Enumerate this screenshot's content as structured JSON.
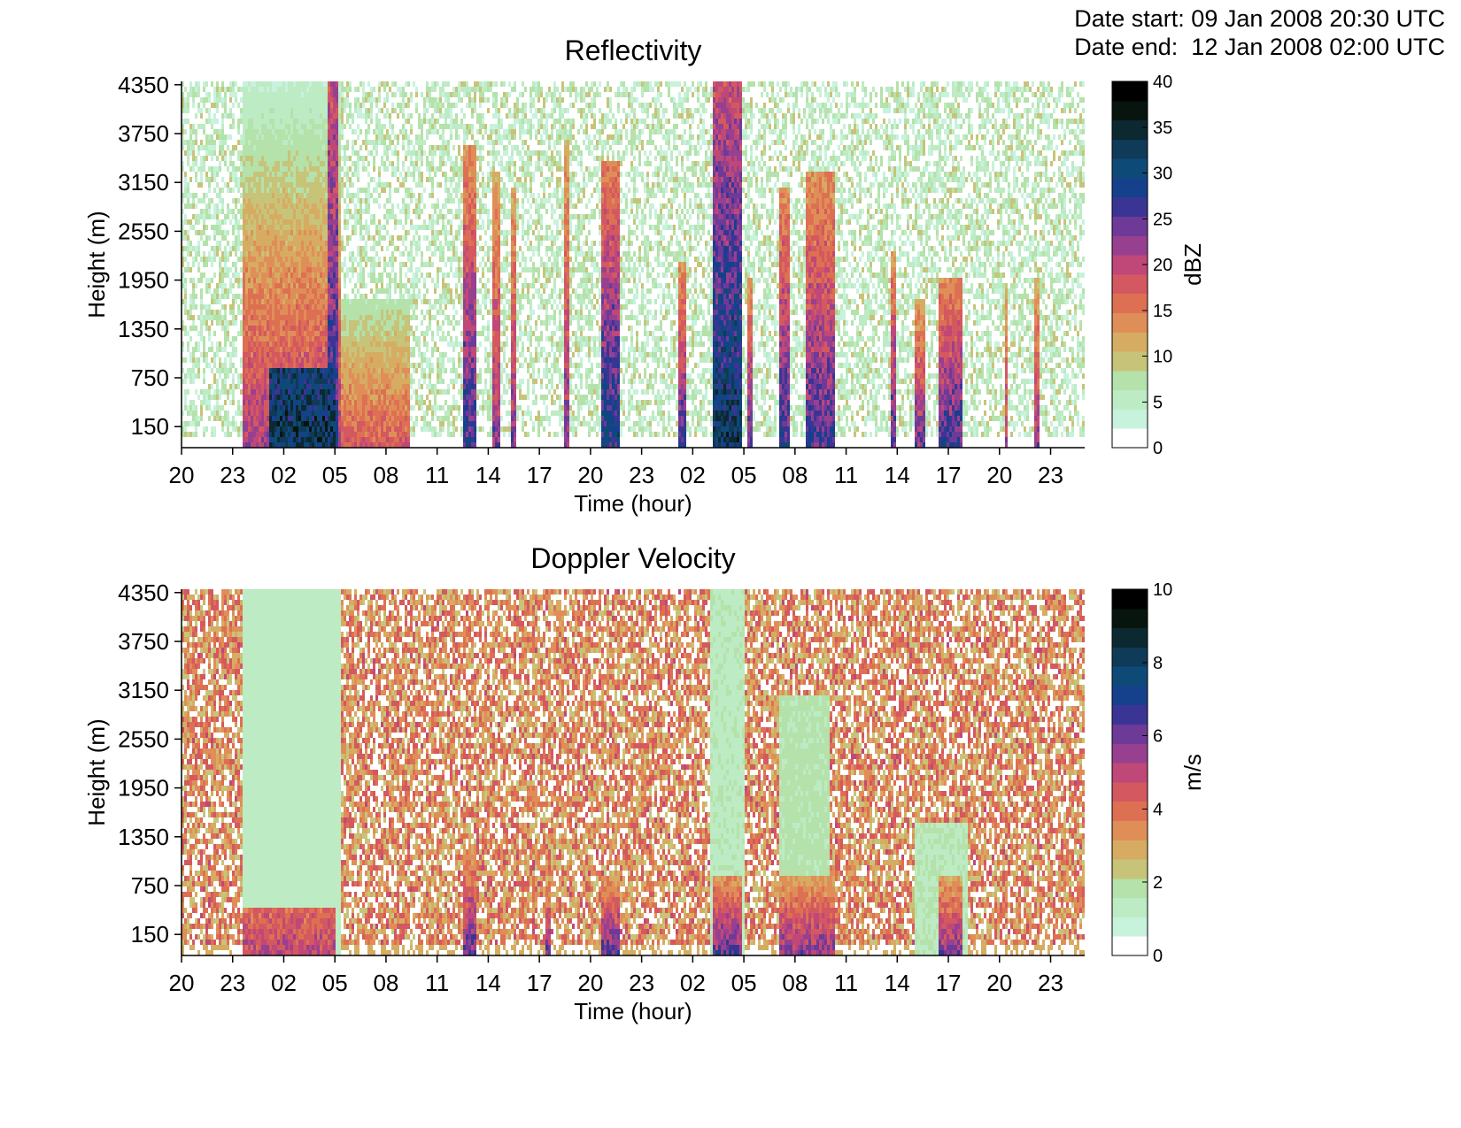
{
  "header": {
    "date_start_label": "Date start:",
    "date_start_value": "09 Jan 2008 20:30 UTC",
    "date_end_label": "Date end:",
    "date_end_value": "12 Jan 2008 02:00 UTC"
  },
  "palette": [
    "#ffffff",
    "#c7f2dc",
    "#bdebc4",
    "#b4e2aa",
    "#c7c47a",
    "#d6ac62",
    "#e08e58",
    "#dd7052",
    "#d45860",
    "#bf4878",
    "#984090",
    "#6e3a98",
    "#3a3594",
    "#15408c",
    "#0e4a78",
    "#0f3a58",
    "#0c2830",
    "#08140e",
    "#000000"
  ],
  "chart_data": [
    {
      "type": "heatmap",
      "title": "Reflectivity",
      "xlabel": "Time (hour)",
      "ylabel": "Height (m)",
      "x_tick_labels": [
        "20",
        "23",
        "02",
        "05",
        "08",
        "11",
        "14",
        "17",
        "20",
        "23",
        "02",
        "05",
        "08",
        "11",
        "14",
        "17",
        "20",
        "23"
      ],
      "y_tick_labels": [
        "150",
        "750",
        "1350",
        "1950",
        "2550",
        "3150",
        "3750",
        "4350"
      ],
      "ylim": [
        0,
        4500
      ],
      "colorbar": {
        "label": "dBZ",
        "min": 0,
        "max": 40,
        "tick_labels": [
          "0",
          "5",
          "10",
          "15",
          "20",
          "25",
          "30",
          "35",
          "40"
        ]
      },
      "features": [
        {
          "x0": 3.5,
          "x1": 9.2,
          "top": 4500,
          "max_value": 22,
          "decay": 0.8
        },
        {
          "x0": 5.0,
          "x1": 9.0,
          "top": 950,
          "max_value": 34,
          "decay": 0.1
        },
        {
          "x0": 8.5,
          "x1": 9.1,
          "top": 4500,
          "max_value": 28,
          "decay": 0.3
        },
        {
          "x0": 9.2,
          "x1": 13.3,
          "top": 1800,
          "max_value": 18,
          "decay": 0.6
        },
        {
          "x0": 16.5,
          "x1": 17.3,
          "top": 3700,
          "max_value": 28,
          "decay": 0.5
        },
        {
          "x0": 18.2,
          "x1": 18.6,
          "top": 3400,
          "max_value": 24,
          "decay": 0.5
        },
        {
          "x0": 19.2,
          "x1": 19.5,
          "top": 3200,
          "max_value": 24,
          "decay": 0.5
        },
        {
          "x0": 22.4,
          "x1": 22.7,
          "top": 3800,
          "max_value": 24,
          "decay": 0.5
        },
        {
          "x0": 24.5,
          "x1": 25.6,
          "top": 3500,
          "max_value": 30,
          "decay": 0.5
        },
        {
          "x0": 29.0,
          "x1": 29.6,
          "top": 2300,
          "max_value": 27,
          "decay": 0.5
        },
        {
          "x0": 31.1,
          "x1": 32.8,
          "top": 4500,
          "max_value": 33,
          "decay": 0.4
        },
        {
          "x0": 33.1,
          "x1": 33.4,
          "top": 2100,
          "max_value": 26,
          "decay": 0.5
        },
        {
          "x0": 35.0,
          "x1": 35.6,
          "top": 3200,
          "max_value": 28,
          "decay": 0.5
        },
        {
          "x0": 36.5,
          "x1": 38.3,
          "top": 3400,
          "max_value": 27,
          "decay": 0.5
        },
        {
          "x0": 41.5,
          "x1": 41.9,
          "top": 2400,
          "max_value": 27,
          "decay": 0.5
        },
        {
          "x0": 43.0,
          "x1": 43.6,
          "top": 1800,
          "max_value": 25,
          "decay": 0.5
        },
        {
          "x0": 44.4,
          "x1": 45.8,
          "top": 2100,
          "max_value": 28,
          "decay": 0.5
        },
        {
          "x0": 48.2,
          "x1": 48.4,
          "top": 2000,
          "max_value": 22,
          "decay": 0.5
        },
        {
          "x0": 49.9,
          "x1": 50.3,
          "top": 2100,
          "max_value": 24,
          "decay": 0.5
        }
      ]
    },
    {
      "type": "heatmap",
      "title": "Doppler Velocity",
      "xlabel": "Time (hour)",
      "ylabel": "Height (m)",
      "x_tick_labels": [
        "20",
        "23",
        "02",
        "05",
        "08",
        "11",
        "14",
        "17",
        "20",
        "23",
        "02",
        "05",
        "08",
        "11",
        "14",
        "17",
        "20",
        "23"
      ],
      "y_tick_labels": [
        "150",
        "750",
        "1350",
        "1950",
        "2550",
        "3150",
        "3750",
        "4350"
      ],
      "ylim": [
        0,
        4500
      ],
      "colorbar": {
        "label": "m/s",
        "min": 0,
        "max": 10,
        "tick_labels": [
          "0",
          "2",
          "4",
          "6",
          "8",
          "10"
        ]
      },
      "features": [
        {
          "x0": 3.5,
          "x1": 9.2,
          "top": 4500,
          "max_value": 1.4,
          "decay": 0.0
        },
        {
          "x0": 3.5,
          "x1": 9.0,
          "top": 600,
          "max_value": 5.2,
          "decay": 0.2
        },
        {
          "x0": 16.5,
          "x1": 17.3,
          "top": 1300,
          "max_value": 6.5,
          "decay": 0.5
        },
        {
          "x0": 21.3,
          "x1": 21.6,
          "top": 1000,
          "max_value": 6.0,
          "decay": 0.5
        },
        {
          "x0": 24.5,
          "x1": 25.6,
          "top": 1000,
          "max_value": 6.5,
          "decay": 0.5
        },
        {
          "x0": 31.1,
          "x1": 32.8,
          "top": 1000,
          "max_value": 6.5,
          "decay": 0.5
        },
        {
          "x0": 35.0,
          "x1": 38.3,
          "top": 1000,
          "max_value": 6.0,
          "decay": 0.5
        },
        {
          "x0": 44.4,
          "x1": 45.8,
          "top": 1000,
          "max_value": 6.0,
          "decay": 0.5
        },
        {
          "x0": 31.0,
          "x1": 33.0,
          "top": 4500,
          "max_value": 1.5,
          "decay": 0.0
        },
        {
          "x0": 35.0,
          "x1": 38.0,
          "top": 3200,
          "max_value": 1.8,
          "decay": 0.0
        },
        {
          "x0": 43.0,
          "x1": 46.0,
          "top": 1600,
          "max_value": 1.6,
          "decay": 0.0
        }
      ]
    }
  ]
}
